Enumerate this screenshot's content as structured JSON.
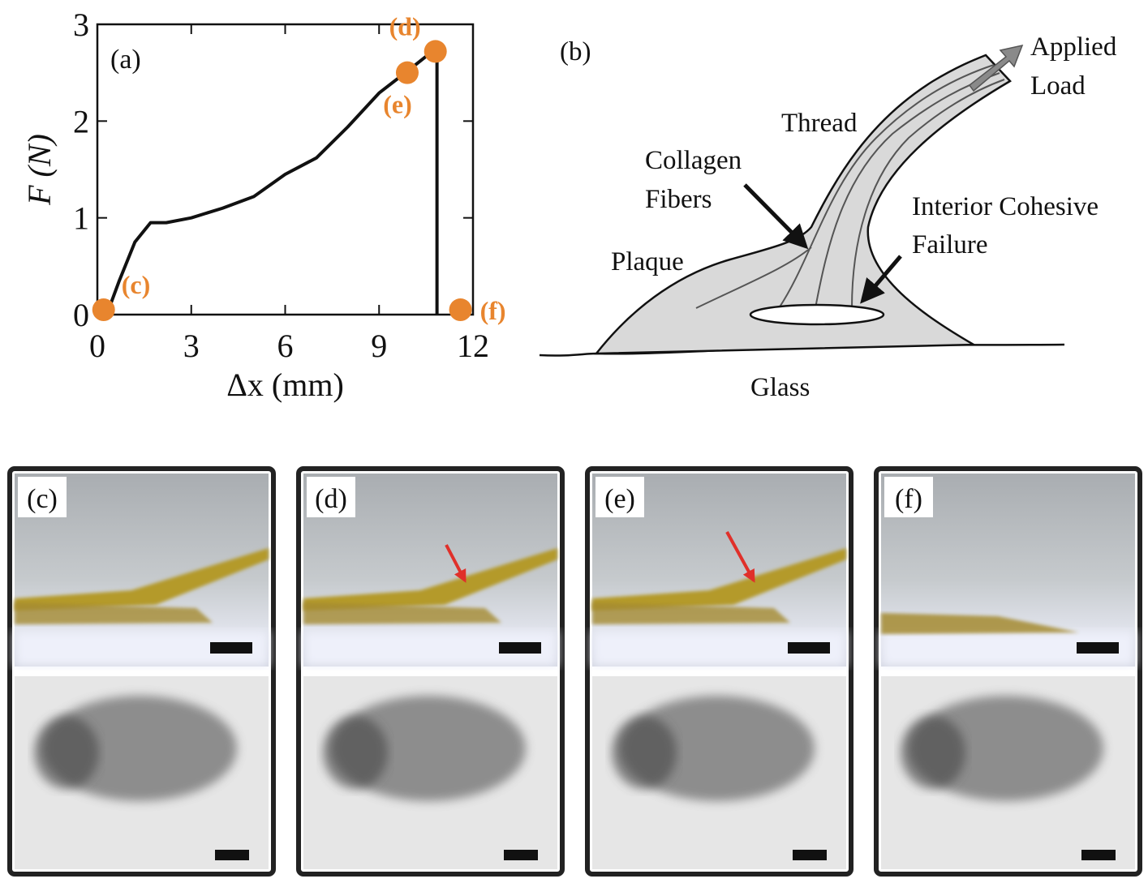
{
  "chart_data": {
    "type": "line",
    "panel_label": "(a)",
    "xlabel": "Δx (mm)",
    "ylabel": "F (N)",
    "xlim": [
      0,
      12
    ],
    "xticks": [
      0,
      3,
      6,
      9,
      12
    ],
    "ylim": [
      0,
      3
    ],
    "yticks": [
      0,
      1,
      2,
      3
    ],
    "series": [
      {
        "color": "#111111",
        "x": [
          0.3,
          0.7,
          1.2,
          1.7,
          2.2,
          3,
          4,
          5,
          6,
          7,
          8,
          9,
          10,
          10.7,
          10.85,
          10.85
        ],
        "values": [
          0,
          0.35,
          0.75,
          0.95,
          0.95,
          1.0,
          1.1,
          1.22,
          1.45,
          1.62,
          1.94,
          2.29,
          2.54,
          2.72,
          2.72,
          0
        ]
      }
    ],
    "points": {
      "color": "#e8852e",
      "x": [
        0.2,
        10.8,
        9.9,
        11.6
      ],
      "values": [
        0.05,
        2.72,
        2.5,
        0.05
      ],
      "labels": [
        "(c)",
        "(d)",
        "(e)",
        "(f)"
      ]
    }
  },
  "diagram": {
    "panel_label": "(b)",
    "applied_load": [
      "Applied",
      "Load"
    ],
    "thread": "Thread",
    "collagen_fibers": [
      "Collagen",
      "Fibers"
    ],
    "plaque": "Plaque",
    "interior_failure": [
      "Interior Cohesive",
      "Failure"
    ],
    "glass": "Glass"
  },
  "photos": [
    {
      "label": "(c)"
    },
    {
      "label": "(d)"
    },
    {
      "label": "(e)"
    },
    {
      "label": "(f)"
    }
  ]
}
